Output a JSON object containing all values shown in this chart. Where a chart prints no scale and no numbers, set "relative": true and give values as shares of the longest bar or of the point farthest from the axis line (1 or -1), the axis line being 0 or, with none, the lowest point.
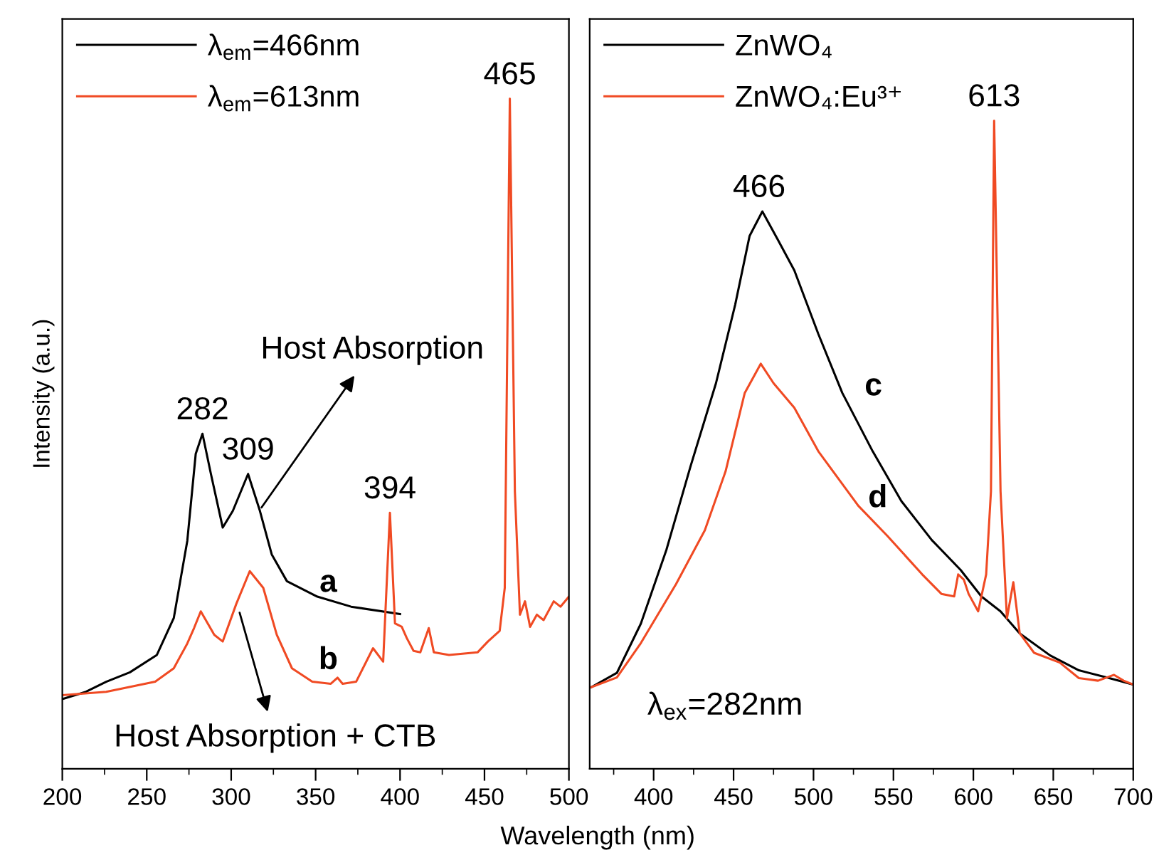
{
  "chart_data": [
    {
      "type": "line",
      "relative": true,
      "ylabel": "Intensity (a.u.)",
      "xlabel": "Wavelength (nm)",
      "xlim": [
        200,
        500
      ],
      "xticks": [
        200,
        {
          "value": 225,
          "label": null
        },
        250,
        {
          "value": 275,
          "label": null
        },
        300,
        {
          "value": 325,
          "label": null
        },
        350,
        {
          "value": 375,
          "label": null
        },
        400,
        {
          "value": 425,
          "label": null
        },
        450,
        {
          "value": 475,
          "label": null
        },
        500
      ],
      "legend": "top left",
      "grid": false,
      "marker": "none",
      "line_style": "solid",
      "series": [
        {
          "name": "λ$_{em}$=466nm",
          "color": "#000000",
          "x": [
            200,
            214,
            226,
            240,
            256,
            266,
            274,
            279,
            283,
            288,
            295,
            301,
            310,
            317,
            324,
            333,
            351,
            371,
            400
          ],
          "values": [
            0.104,
            0.115,
            0.13,
            0.144,
            0.17,
            0.225,
            0.34,
            0.47,
            0.5,
            0.44,
            0.36,
            0.385,
            0.44,
            0.385,
            0.32,
            0.28,
            0.257,
            0.242,
            0.231
          ]
        },
        {
          "name": "λ$_{em}$=613nm",
          "color": "#f04a23",
          "x": [
            200,
            226,
            255,
            266,
            274,
            278,
            282,
            290,
            295,
            303,
            311,
            319,
            327,
            336,
            348,
            359,
            363,
            366,
            374,
            384,
            390,
            394,
            397,
            401,
            404,
            408,
            412,
            417,
            420,
            429,
            446,
            452,
            459,
            462,
            465,
            468,
            471,
            474,
            477,
            481,
            485,
            491,
            495,
            500
          ],
          "values": [
            0.11,
            0.115,
            0.13,
            0.15,
            0.187,
            0.21,
            0.235,
            0.2,
            0.19,
            0.246,
            0.295,
            0.27,
            0.2,
            0.15,
            0.13,
            0.127,
            0.136,
            0.127,
            0.13,
            0.18,
            0.16,
            0.382,
            0.217,
            0.212,
            0.195,
            0.176,
            0.174,
            0.21,
            0.174,
            0.17,
            0.174,
            0.19,
            0.206,
            0.27,
            1.0,
            0.414,
            0.23,
            0.25,
            0.212,
            0.23,
            0.222,
            0.25,
            0.242,
            0.257
          ]
        }
      ],
      "annotations": [
        {
          "text": "282",
          "x": 283,
          "y": 0.5
        },
        {
          "text": "309",
          "x": 310,
          "y": 0.44
        },
        {
          "text": "394",
          "x": 394,
          "y": 0.382
        },
        {
          "text": "465",
          "x": 465,
          "y": 1.0
        },
        "a",
        "b",
        {
          "text": "Host Absorption",
          "x": 318,
          "y": 0.39
        },
        {
          "text": "Host Absorption + CTB",
          "x": 305,
          "y": 0.233
        }
      ]
    },
    {
      "type": "line",
      "relative": true,
      "xlim": [
        360,
        700
      ],
      "xticks": [
        {
          "value": 375,
          "label": null
        },
        400,
        {
          "value": 425,
          "label": null
        },
        450,
        {
          "value": 475,
          "label": null
        },
        500,
        {
          "value": 525,
          "label": null
        },
        550,
        {
          "value": 575,
          "label": null
        },
        600,
        {
          "value": 625,
          "label": null
        },
        650,
        {
          "value": 675,
          "label": null
        },
        700
      ],
      "legend": "top left",
      "grid": false,
      "marker": "none",
      "line_style": "solid",
      "series": [
        {
          "name": "ZnWO₄",
          "color": "#000000",
          "x": [
            361,
            377,
            392,
            408,
            423,
            439,
            451,
            460,
            468,
            478,
            488,
            503,
            518,
            537,
            555,
            574,
            592,
            605,
            617,
            629,
            648,
            666,
            685,
            700
          ],
          "values": [
            0.126,
            0.148,
            0.224,
            0.338,
            0.466,
            0.595,
            0.716,
            0.822,
            0.86,
            0.815,
            0.769,
            0.671,
            0.58,
            0.49,
            0.413,
            0.353,
            0.307,
            0.266,
            0.243,
            0.209,
            0.175,
            0.152,
            0.14,
            0.13
          ]
        },
        {
          "name": "ZnWO₄:Eu³⁺",
          "color": "#f04a23",
          "x": [
            361,
            377,
            392,
            414,
            432,
            445,
            457,
            467,
            475,
            488,
            503,
            528,
            546,
            568,
            580,
            588,
            590.5,
            594,
            597,
            603,
            608,
            611,
            613,
            617,
            621,
            625,
            629,
            638,
            654,
            666,
            678,
            688,
            694,
            700
          ],
          "values": [
            0.126,
            0.141,
            0.194,
            0.285,
            0.368,
            0.459,
            0.58,
            0.625,
            0.595,
            0.557,
            0.49,
            0.406,
            0.36,
            0.3,
            0.27,
            0.266,
            0.3,
            0.292,
            0.27,
            0.243,
            0.3,
            0.428,
            1.0,
            0.428,
            0.232,
            0.288,
            0.209,
            0.179,
            0.164,
            0.14,
            0.136,
            0.145,
            0.136,
            0.13
          ]
        }
      ],
      "annotations": [
        {
          "text": "466",
          "x": 466,
          "y": 0.86
        },
        {
          "text": "613",
          "x": 613,
          "y": 1.0
        },
        "c",
        "d",
        "λ$_{ex}$=282nm"
      ]
    }
  ]
}
